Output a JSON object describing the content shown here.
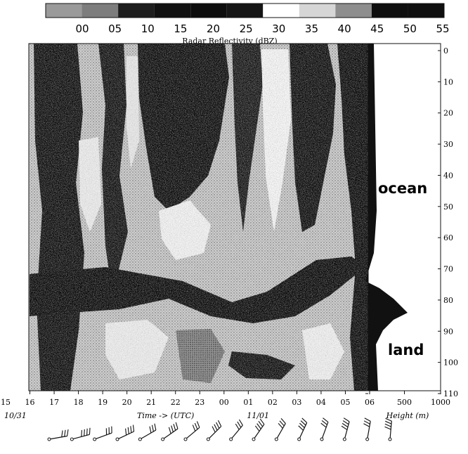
{
  "chart_data": {
    "type": "heatmap",
    "colorbar": {
      "title": "Radar Reflectivity (dBZ)",
      "ticks": [
        "00",
        "05",
        "10",
        "15",
        "20",
        "25",
        "30",
        "35",
        "40",
        "45",
        "50",
        "55"
      ],
      "shades": [
        "#9a9a9a",
        "#7d7d7d",
        "#1e1e1e",
        "#111111",
        "#0d0d0d",
        "#151515",
        "#ffffff",
        "#d6d6d6",
        "#8e8e8e",
        "#0f0f0f",
        "#0f0f0f"
      ]
    },
    "x_axis": {
      "label": "Time -> (UTC)",
      "ticks": [
        "15",
        "16",
        "17",
        "18",
        "19",
        "20",
        "21",
        "22",
        "23",
        "00",
        "01",
        "02",
        "03",
        "04",
        "05",
        "06"
      ],
      "date_labels": [
        {
          "text": "10/31",
          "at": "15"
        },
        {
          "text": "11/01",
          "at": "01"
        }
      ]
    },
    "y_axis": {
      "ticks": [
        "0",
        "10",
        "20",
        "30",
        "40",
        "50",
        "60",
        "70",
        "80",
        "90",
        "100",
        "110"
      ],
      "range": [
        0,
        110
      ]
    },
    "profile_axis": {
      "label": "Height (m)",
      "ticks": [
        "500",
        "1000"
      ],
      "range": [
        0,
        1000
      ]
    },
    "annotations": [
      "ocean",
      "land"
    ],
    "wind_barbs_count": 16
  }
}
